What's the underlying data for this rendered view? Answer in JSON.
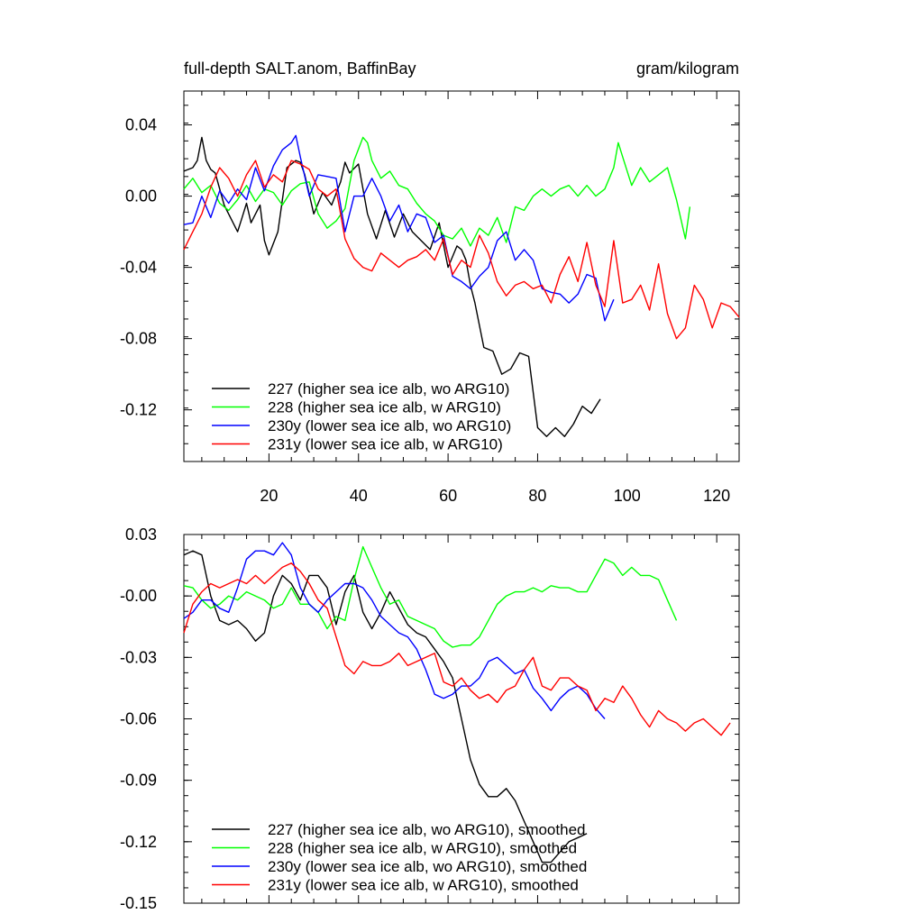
{
  "chart_data": [
    {
      "type": "line",
      "title_left": "full-depth SALT.anom, BaffinBay",
      "title_right": "gram/kilogram",
      "xlim": [
        1,
        125
      ],
      "ylim": [
        -0.149,
        0.059
      ],
      "yticks": [
        0.04,
        0.0,
        -0.04,
        -0.08,
        -0.12
      ],
      "ytick_labels": [
        "0.04",
        "0.00",
        "-0.04",
        "-0.08",
        "-0.12"
      ],
      "xticks": [
        20,
        40,
        60,
        80,
        100,
        120
      ],
      "xtick_labels": [
        "20",
        "40",
        "60",
        "80",
        "100",
        "120"
      ],
      "series": [
        {
          "name": "227 (higher sea ice alb, wo ARG10)",
          "color": "#000000",
          "x": [
            1,
            3,
            4,
            5,
            6,
            7,
            8,
            10,
            12,
            13,
            14,
            15,
            16,
            17,
            18,
            19,
            20,
            22,
            24,
            26,
            27,
            28,
            30,
            32,
            34,
            36,
            37,
            38,
            40,
            42,
            44,
            46,
            48,
            50,
            52,
            54,
            56,
            58,
            60,
            62,
            63,
            64,
            65,
            66,
            68,
            70,
            72,
            74,
            76,
            78,
            80,
            82,
            84,
            86,
            88,
            90,
            92,
            94
          ],
          "y": [
            0.014,
            0.016,
            0.02,
            0.033,
            0.02,
            0.015,
            0.013,
            -0.005,
            -0.015,
            -0.02,
            -0.012,
            -0.004,
            -0.015,
            -0.01,
            -0.005,
            -0.025,
            -0.033,
            -0.02,
            0.016,
            0.02,
            0.019,
            0.012,
            -0.01,
            0.002,
            -0.005,
            0.008,
            0.019,
            0.013,
            0.018,
            -0.01,
            -0.024,
            -0.008,
            -0.023,
            -0.01,
            -0.02,
            -0.025,
            -0.03,
            -0.015,
            -0.04,
            -0.028,
            -0.03,
            -0.036,
            -0.05,
            -0.06,
            -0.085,
            -0.087,
            -0.1,
            -0.097,
            -0.088,
            -0.09,
            -0.13,
            -0.135,
            -0.13,
            -0.135,
            -0.128,
            -0.118,
            -0.122,
            -0.114
          ]
        },
        {
          "name": "228 (higher sea ice alb, w ARG10)",
          "color": "#00ff00",
          "x": [
            1,
            3,
            5,
            7,
            9,
            11,
            13,
            15,
            17,
            19,
            21,
            23,
            25,
            27,
            29,
            31,
            33,
            35,
            37,
            39,
            41,
            42,
            43,
            45,
            47,
            49,
            51,
            53,
            55,
            57,
            59,
            61,
            63,
            65,
            67,
            69,
            71,
            73,
            75,
            77,
            79,
            81,
            83,
            85,
            87,
            89,
            91,
            93,
            95,
            97,
            98,
            99,
            101,
            103,
            105,
            107,
            109,
            111,
            113,
            114
          ],
          "y": [
            0.004,
            0.01,
            0.002,
            0.006,
            -0.004,
            -0.008,
            -0.002,
            0.006,
            -0.003,
            0.004,
            0.002,
            -0.005,
            0.003,
            0.007,
            0.008,
            -0.01,
            -0.018,
            -0.014,
            -0.007,
            0.02,
            0.033,
            0.03,
            0.02,
            0.01,
            0.014,
            0.006,
            0.004,
            -0.004,
            -0.01,
            -0.014,
            -0.022,
            -0.024,
            -0.018,
            -0.028,
            -0.018,
            -0.022,
            -0.012,
            -0.026,
            -0.006,
            -0.008,
            0.0,
            0.004,
            0.0,
            0.004,
            0.006,
            0.0,
            0.006,
            0.0,
            0.004,
            0.016,
            0.03,
            0.022,
            0.006,
            0.016,
            0.008,
            0.012,
            0.016,
            -0.002,
            -0.024,
            -0.006
          ]
        },
        {
          "name": "230y (lower sea ice alb, wo ARG10)",
          "color": "#0000ff",
          "x": [
            1,
            3,
            5,
            7,
            9,
            11,
            13,
            15,
            17,
            19,
            21,
            23,
            25,
            26,
            27,
            29,
            31,
            33,
            35,
            37,
            39,
            41,
            43,
            45,
            47,
            49,
            51,
            53,
            55,
            57,
            59,
            61,
            63,
            65,
            67,
            69,
            71,
            73,
            75,
            77,
            79,
            81,
            83,
            85,
            87,
            89,
            91,
            93,
            95,
            97
          ],
          "y": [
            -0.016,
            -0.015,
            0.0,
            -0.012,
            0.003,
            -0.004,
            0.004,
            -0.002,
            0.016,
            0.003,
            0.017,
            0.026,
            0.03,
            0.034,
            0.022,
            0.0,
            0.012,
            0.011,
            0.01,
            -0.02,
            0.0,
            0.0,
            0.01,
            0.0,
            -0.014,
            -0.005,
            -0.02,
            -0.01,
            -0.012,
            -0.026,
            -0.022,
            -0.045,
            -0.048,
            -0.052,
            -0.045,
            -0.04,
            -0.025,
            -0.02,
            -0.036,
            -0.03,
            -0.036,
            -0.052,
            -0.054,
            -0.055,
            -0.06,
            -0.055,
            -0.044,
            -0.046,
            -0.07,
            -0.058
          ]
        },
        {
          "name": "231y (lower sea ice alb, w ARG10)",
          "color": "#ff0000",
          "x": [
            1,
            3,
            5,
            7,
            9,
            11,
            13,
            15,
            17,
            19,
            21,
            23,
            25,
            27,
            29,
            31,
            33,
            35,
            37,
            39,
            41,
            43,
            45,
            47,
            49,
            51,
            53,
            55,
            57,
            59,
            61,
            63,
            65,
            67,
            69,
            71,
            73,
            75,
            77,
            79,
            81,
            83,
            85,
            87,
            89,
            91,
            93,
            95,
            97,
            99,
            101,
            103,
            105,
            107,
            109,
            111,
            113,
            115,
            117,
            119,
            121,
            123,
            125
          ],
          "y": [
            -0.03,
            -0.02,
            -0.01,
            0.005,
            0.016,
            0.01,
            0.0,
            0.012,
            0.02,
            0.005,
            0.012,
            0.008,
            0.02,
            0.018,
            0.015,
            0.004,
            0.0,
            0.004,
            -0.024,
            -0.035,
            -0.04,
            -0.042,
            -0.032,
            -0.036,
            -0.04,
            -0.036,
            -0.034,
            -0.03,
            -0.036,
            -0.024,
            -0.044,
            -0.036,
            -0.04,
            -0.022,
            -0.032,
            -0.048,
            -0.056,
            -0.05,
            -0.048,
            -0.052,
            -0.05,
            -0.06,
            -0.044,
            -0.034,
            -0.048,
            -0.026,
            -0.05,
            -0.062,
            -0.025,
            -0.06,
            -0.058,
            -0.05,
            -0.064,
            -0.038,
            -0.066,
            -0.08,
            -0.074,
            -0.05,
            -0.058,
            -0.074,
            -0.06,
            -0.062,
            -0.068
          ]
        }
      ]
    },
    {
      "type": "line",
      "xlim": [
        1,
        125
      ],
      "ylim": [
        -0.15,
        0.03
      ],
      "yticks": [
        0.03,
        0.0,
        -0.03,
        -0.06,
        -0.09,
        -0.12,
        -0.15
      ],
      "ytick_labels": [
        "0.03",
        "-0.00",
        "-0.03",
        "-0.06",
        "-0.09",
        "-0.12",
        "-0.15"
      ],
      "series": [
        {
          "name": "227 (higher sea ice alb, wo ARG10), smoothed",
          "color": "#000000",
          "x": [
            1,
            3,
            5,
            7,
            9,
            11,
            13,
            15,
            17,
            19,
            21,
            23,
            25,
            27,
            29,
            31,
            33,
            35,
            37,
            39,
            41,
            43,
            45,
            47,
            49,
            51,
            53,
            55,
            57,
            59,
            61,
            63,
            65,
            67,
            69,
            71,
            73,
            75,
            77,
            79,
            81,
            83,
            85,
            87,
            89,
            91
          ],
          "y": [
            0.02,
            0.022,
            0.02,
            0.0,
            -0.012,
            -0.014,
            -0.012,
            -0.016,
            -0.022,
            -0.018,
            0.0,
            0.01,
            0.006,
            -0.002,
            0.01,
            0.01,
            0.004,
            -0.014,
            0.002,
            0.01,
            -0.008,
            -0.016,
            -0.008,
            0.002,
            -0.006,
            -0.014,
            -0.018,
            -0.02,
            -0.026,
            -0.032,
            -0.04,
            -0.06,
            -0.08,
            -0.092,
            -0.098,
            -0.098,
            -0.094,
            -0.1,
            -0.11,
            -0.12,
            -0.13,
            -0.13,
            -0.125,
            -0.12,
            -0.118,
            -0.116
          ]
        },
        {
          "name": "228 (higher sea ice alb, w ARG10), smoothed",
          "color": "#00ff00",
          "x": [
            1,
            3,
            5,
            7,
            9,
            11,
            13,
            15,
            17,
            19,
            21,
            23,
            25,
            27,
            29,
            31,
            33,
            35,
            37,
            39,
            41,
            43,
            45,
            47,
            49,
            51,
            53,
            55,
            57,
            59,
            61,
            63,
            65,
            67,
            69,
            71,
            73,
            75,
            77,
            79,
            81,
            83,
            85,
            87,
            89,
            91,
            93,
            95,
            97,
            99,
            101,
            103,
            105,
            107,
            109,
            111
          ],
          "y": [
            0.005,
            0.004,
            -0.002,
            -0.006,
            -0.004,
            0.0,
            -0.002,
            0.002,
            0.0,
            -0.002,
            -0.006,
            -0.004,
            0.004,
            -0.004,
            -0.004,
            -0.008,
            -0.016,
            -0.01,
            -0.012,
            0.008,
            0.024,
            0.014,
            0.004,
            -0.004,
            -0.002,
            -0.01,
            -0.012,
            -0.014,
            -0.016,
            -0.022,
            -0.025,
            -0.024,
            -0.024,
            -0.02,
            -0.012,
            -0.004,
            0.0,
            0.002,
            0.002,
            0.004,
            0.002,
            0.005,
            0.004,
            0.004,
            0.002,
            0.002,
            0.01,
            0.018,
            0.016,
            0.01,
            0.014,
            0.01,
            0.01,
            0.008,
            -0.002,
            -0.012
          ]
        },
        {
          "name": "230y (lower sea ice alb, wo ARG10), smoothed",
          "color": "#0000ff",
          "x": [
            1,
            3,
            5,
            7,
            9,
            11,
            13,
            15,
            17,
            19,
            21,
            23,
            25,
            27,
            29,
            31,
            33,
            35,
            37,
            39,
            41,
            43,
            45,
            47,
            49,
            51,
            53,
            55,
            57,
            59,
            61,
            63,
            65,
            67,
            69,
            71,
            73,
            75,
            77,
            79,
            81,
            83,
            85,
            87,
            89,
            91,
            93,
            95
          ],
          "y": [
            -0.011,
            -0.008,
            -0.002,
            -0.002,
            -0.006,
            -0.008,
            0.004,
            0.018,
            0.022,
            0.022,
            0.02,
            0.026,
            0.02,
            0.004,
            -0.004,
            -0.008,
            -0.002,
            0.002,
            0.006,
            0.006,
            0.004,
            -0.002,
            -0.01,
            -0.014,
            -0.018,
            -0.02,
            -0.026,
            -0.036,
            -0.048,
            -0.05,
            -0.048,
            -0.044,
            -0.044,
            -0.04,
            -0.032,
            -0.03,
            -0.034,
            -0.038,
            -0.036,
            -0.045,
            -0.05,
            -0.056,
            -0.05,
            -0.046,
            -0.044,
            -0.048,
            -0.055,
            -0.06
          ]
        },
        {
          "name": "231y (lower sea ice alb, w ARG10), smoothed",
          "color": "#ff0000",
          "x": [
            1,
            3,
            5,
            7,
            9,
            11,
            13,
            15,
            17,
            19,
            21,
            23,
            25,
            27,
            29,
            31,
            33,
            35,
            37,
            39,
            41,
            43,
            45,
            47,
            49,
            51,
            53,
            55,
            57,
            59,
            61,
            63,
            65,
            67,
            69,
            71,
            73,
            75,
            77,
            79,
            81,
            83,
            85,
            87,
            89,
            91,
            93,
            95,
            97,
            99,
            101,
            103,
            105,
            107,
            109,
            111,
            113,
            115,
            117,
            119,
            121,
            123
          ],
          "y": [
            -0.018,
            -0.004,
            0.002,
            0.006,
            0.004,
            0.006,
            0.008,
            0.006,
            0.01,
            0.006,
            0.01,
            0.014,
            0.016,
            0.012,
            0.006,
            -0.002,
            -0.006,
            -0.02,
            -0.034,
            -0.038,
            -0.032,
            -0.034,
            -0.034,
            -0.032,
            -0.028,
            -0.034,
            -0.032,
            -0.03,
            -0.028,
            -0.042,
            -0.044,
            -0.04,
            -0.046,
            -0.05,
            -0.048,
            -0.052,
            -0.046,
            -0.044,
            -0.036,
            -0.03,
            -0.044,
            -0.046,
            -0.04,
            -0.04,
            -0.044,
            -0.046,
            -0.056,
            -0.05,
            -0.052,
            -0.044,
            -0.05,
            -0.058,
            -0.064,
            -0.056,
            -0.06,
            -0.062,
            -0.066,
            -0.062,
            -0.06,
            -0.064,
            -0.068,
            -0.062
          ]
        }
      ]
    }
  ]
}
